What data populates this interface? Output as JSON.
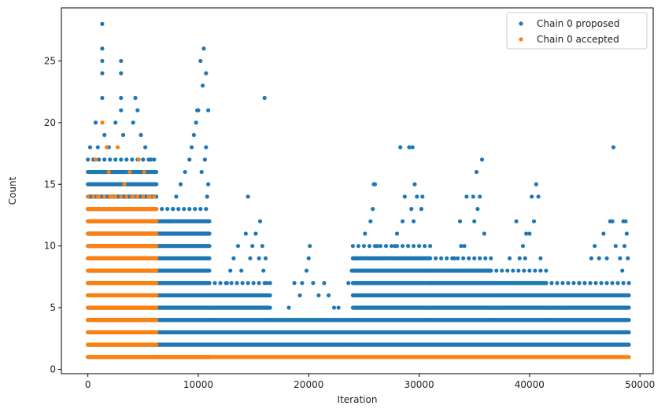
{
  "chart_data": {
    "type": "scatter",
    "xlabel": "Iteration",
    "ylabel": "Count",
    "xlim": [
      -2400,
      51200
    ],
    "ylim": [
      -0.35,
      29.3
    ],
    "xticks": [
      0,
      10000,
      20000,
      30000,
      40000,
      50000
    ],
    "yticks": [
      0,
      5,
      10,
      15,
      20,
      25
    ],
    "grid": false,
    "legend_position": "top-right",
    "series": [
      {
        "name": "Chain 0 proposed",
        "color": "#1f77b4",
        "bands": [
          {
            "x_start": 0,
            "x_end": 6200,
            "y_min": 1,
            "y_max": 16
          },
          {
            "x_start": 6200,
            "x_end": 11000,
            "y_min": 1,
            "y_max": 12
          },
          {
            "x_start": 11000,
            "x_end": 16500,
            "y_min": 2,
            "y_max": 6
          },
          {
            "x_start": 16500,
            "x_end": 24000,
            "y_min": 2,
            "y_max": 4
          },
          {
            "x_start": 24000,
            "x_end": 31000,
            "y_min": 2,
            "y_max": 9
          },
          {
            "x_start": 31000,
            "x_end": 36500,
            "y_min": 2,
            "y_max": 8
          },
          {
            "x_start": 36500,
            "x_end": 41500,
            "y_min": 2,
            "y_max": 7
          },
          {
            "x_start": 41500,
            "x_end": 49000,
            "y_min": 2,
            "y_max": 6
          }
        ],
        "outliers": [
          [
            1300,
            28
          ],
          [
            1300,
            26
          ],
          [
            1300,
            25
          ],
          [
            1300,
            24
          ],
          [
            1300,
            22
          ],
          [
            700,
            20
          ],
          [
            1500,
            19
          ],
          [
            3000,
            25
          ],
          [
            3000,
            24
          ],
          [
            3000,
            22
          ],
          [
            3000,
            21
          ],
          [
            2500,
            20
          ],
          [
            3200,
            19
          ],
          [
            4300,
            22
          ],
          [
            4500,
            21
          ],
          [
            4100,
            20
          ],
          [
            4800,
            19
          ],
          [
            5200,
            18
          ],
          [
            5700,
            17
          ],
          [
            5900,
            16
          ],
          [
            200,
            18
          ],
          [
            500,
            17
          ],
          [
            900,
            18
          ],
          [
            1900,
            18
          ],
          [
            9900,
            21
          ],
          [
            10000,
            21
          ],
          [
            9800,
            20
          ],
          [
            9600,
            19
          ],
          [
            9400,
            18
          ],
          [
            9200,
            17
          ],
          [
            8800,
            16
          ],
          [
            8400,
            15
          ],
          [
            8000,
            14
          ],
          [
            7700,
            13
          ],
          [
            7400,
            12
          ],
          [
            10200,
            25
          ],
          [
            10500,
            26
          ],
          [
            10400,
            23
          ],
          [
            10700,
            24
          ],
          [
            10900,
            21
          ],
          [
            10700,
            18
          ],
          [
            10600,
            17
          ],
          [
            10300,
            16
          ],
          [
            10900,
            15
          ],
          [
            10800,
            14
          ],
          [
            14500,
            14
          ],
          [
            15600,
            12
          ],
          [
            14300,
            11
          ],
          [
            15200,
            11
          ],
          [
            13600,
            10
          ],
          [
            14900,
            10
          ],
          [
            15800,
            10
          ],
          [
            13200,
            9
          ],
          [
            14700,
            9
          ],
          [
            15500,
            9
          ],
          [
            16000,
            22
          ],
          [
            16100,
            9
          ],
          [
            15900,
            8
          ],
          [
            13900,
            8
          ],
          [
            12600,
            7
          ],
          [
            12900,
            8
          ],
          [
            16200,
            7
          ],
          [
            16300,
            6
          ],
          [
            20100,
            10
          ],
          [
            20000,
            9
          ],
          [
            19800,
            8
          ],
          [
            19400,
            7
          ],
          [
            19200,
            6
          ],
          [
            18700,
            7
          ],
          [
            18200,
            5
          ],
          [
            20400,
            7
          ],
          [
            20900,
            6
          ],
          [
            21400,
            7
          ],
          [
            21800,
            6
          ],
          [
            22300,
            5
          ],
          [
            22700,
            5
          ],
          [
            23600,
            7
          ],
          [
            23900,
            8
          ],
          [
            24300,
            9
          ],
          [
            24700,
            9
          ],
          [
            25100,
            11
          ],
          [
            25600,
            12
          ],
          [
            25800,
            13
          ],
          [
            25900,
            15
          ],
          [
            26000,
            15
          ],
          [
            26200,
            10
          ],
          [
            26600,
            7
          ],
          [
            27500,
            9
          ],
          [
            28000,
            11
          ],
          [
            28300,
            18
          ],
          [
            28700,
            14
          ],
          [
            29100,
            18
          ],
          [
            29400,
            18
          ],
          [
            29600,
            15
          ],
          [
            29800,
            14
          ],
          [
            30200,
            13
          ],
          [
            30300,
            14
          ],
          [
            29300,
            13
          ],
          [
            29500,
            12
          ],
          [
            28500,
            12
          ],
          [
            27800,
            10
          ],
          [
            30600,
            8
          ],
          [
            31000,
            7
          ],
          [
            33700,
            12
          ],
          [
            34300,
            14
          ],
          [
            34900,
            14
          ],
          [
            35200,
            16
          ],
          [
            35500,
            14
          ],
          [
            35700,
            17
          ],
          [
            35300,
            13
          ],
          [
            35000,
            12
          ],
          [
            34100,
            10
          ],
          [
            33800,
            10
          ],
          [
            35900,
            11
          ],
          [
            33200,
            9
          ],
          [
            32500,
            7
          ],
          [
            31800,
            6
          ],
          [
            36400,
            5
          ],
          [
            37100,
            5
          ],
          [
            38200,
            9
          ],
          [
            38800,
            12
          ],
          [
            39400,
            10
          ],
          [
            39700,
            11
          ],
          [
            40200,
            14
          ],
          [
            40600,
            15
          ],
          [
            40800,
            14
          ],
          [
            40400,
            12
          ],
          [
            40000,
            11
          ],
          [
            39100,
            9
          ],
          [
            39600,
            9
          ],
          [
            41000,
            9
          ],
          [
            41300,
            6
          ],
          [
            42000,
            5
          ],
          [
            43200,
            5
          ],
          [
            44000,
            6
          ],
          [
            44500,
            7
          ],
          [
            45000,
            7
          ],
          [
            45600,
            9
          ],
          [
            45900,
            10
          ],
          [
            46300,
            9
          ],
          [
            46700,
            11
          ],
          [
            47000,
            9
          ],
          [
            47300,
            12
          ],
          [
            47500,
            12
          ],
          [
            47600,
            18
          ],
          [
            47800,
            10
          ],
          [
            48200,
            9
          ],
          [
            48500,
            12
          ],
          [
            48700,
            12
          ],
          [
            48800,
            11
          ],
          [
            48600,
            10
          ],
          [
            48900,
            9
          ],
          [
            48400,
            8
          ]
        ]
      },
      {
        "name": "Chain 0 accepted",
        "color": "#ff7f0e",
        "bands": [
          {
            "x_start": 0,
            "x_end": 6200,
            "y_min": 1,
            "y_max": 13
          },
          {
            "x_start": 6200,
            "x_end": 49000,
            "y_min": 1,
            "y_max": 1
          }
        ],
        "outliers": [
          [
            1300,
            20
          ],
          [
            1700,
            18
          ],
          [
            2700,
            18
          ],
          [
            700,
            17
          ],
          [
            4600,
            17
          ],
          [
            1900,
            16
          ],
          [
            3800,
            16
          ],
          [
            5100,
            16
          ],
          [
            900,
            14
          ],
          [
            2200,
            14
          ],
          [
            3300,
            15
          ],
          [
            4100,
            14
          ],
          [
            5600,
            14
          ]
        ]
      }
    ]
  }
}
